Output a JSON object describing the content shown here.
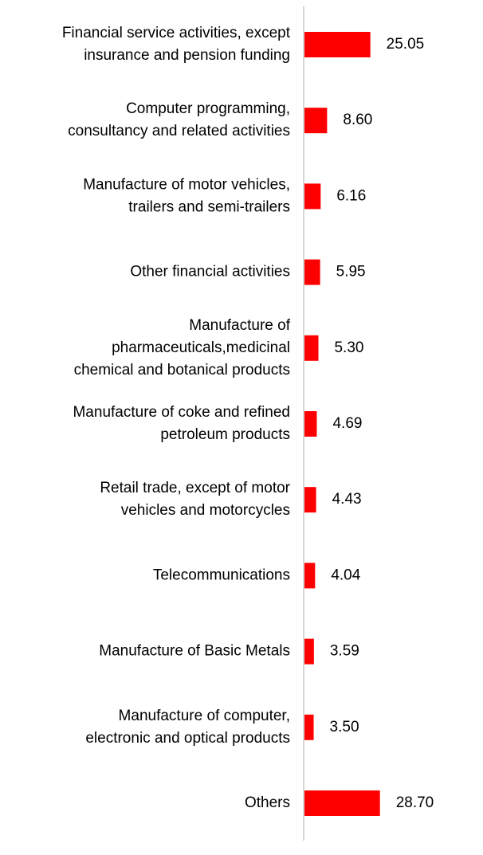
{
  "chart_data": {
    "type": "bar",
    "orientation": "horizontal",
    "title": "",
    "xlabel": "",
    "ylabel": "",
    "grid": false,
    "legend": "none",
    "xlim": [
      0,
      30
    ],
    "bar_color": "#ff0000",
    "axis_color": "#c8c8c8",
    "categories": [
      [
        "Financial service activities, except",
        "insurance and pension funding"
      ],
      [
        "Computer programming,",
        "consultancy and related activities"
      ],
      [
        "Manufacture of motor vehicles,",
        "trailers and semi-trailers"
      ],
      [
        "Other financial activities"
      ],
      [
        "Manufacture of",
        "pharmaceuticals,medicinal",
        "chemical and botanical products"
      ],
      [
        "Manufacture of coke and refined",
        "petroleum products"
      ],
      [
        "Retail trade, except of motor",
        "vehicles and motorcycles"
      ],
      [
        "Telecommunications"
      ],
      [
        "Manufacture of Basic Metals"
      ],
      [
        "Manufacture of computer,",
        "electronic and optical products"
      ],
      [
        "Others"
      ]
    ],
    "values": [
      25.05,
      8.6,
      6.16,
      5.95,
      5.3,
      4.69,
      4.43,
      4.04,
      3.59,
      3.5,
      28.7
    ],
    "value_labels": [
      "25.05",
      "8.60",
      "6.16",
      "5.95",
      "5.30",
      "4.69",
      "4.43",
      "4.04",
      "3.59",
      "3.50",
      "28.70"
    ]
  }
}
